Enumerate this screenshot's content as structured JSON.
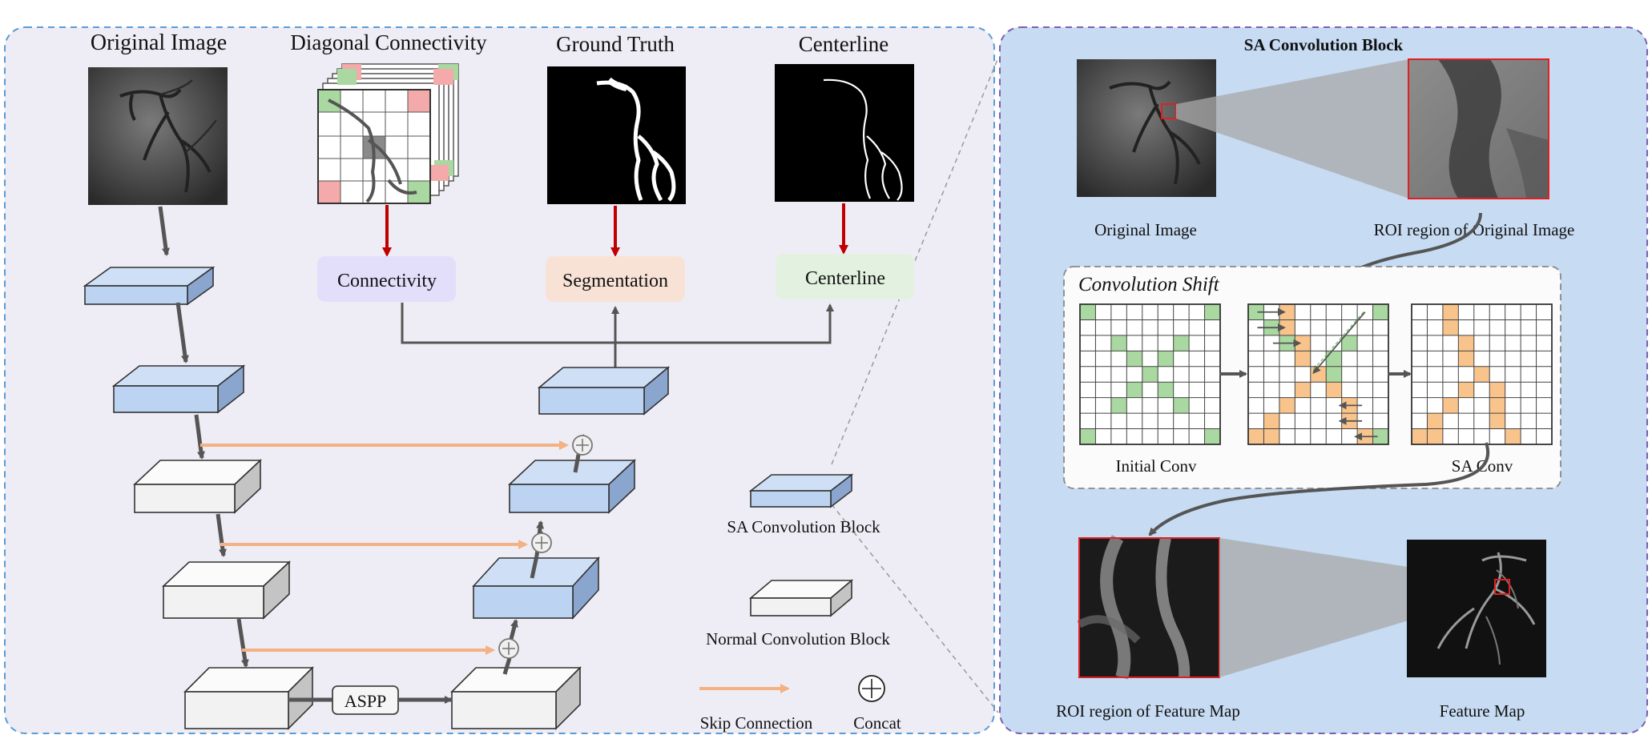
{
  "left_panel": {
    "col_titles": {
      "original": "Original Image",
      "diagonal": "Diagonal Connectivity",
      "ground_truth": "Ground Truth",
      "centerline": "Centerline"
    },
    "outputs": {
      "connectivity": "Connectivity",
      "segmentation": "Segmentation",
      "centerline": "Centerline"
    },
    "aspp_label": "ASPP",
    "legend": {
      "sa_block": "SA Convolution Block",
      "normal_block": "Normal Convolution Block",
      "skip": "Skip Connection",
      "concat": "Concat"
    }
  },
  "right_panel": {
    "title": "SA Convolution Block",
    "original_image": "Original Image",
    "roi_original": "ROI region of Original Image",
    "shift_title": "Convolution Shift",
    "initial_conv": "Initial Conv",
    "sa_conv": "SA Conv",
    "roi_feature": "ROI region of  Feature Map",
    "feature_map": "Feature Map"
  },
  "colors": {
    "left_bg": "#eeedf5",
    "right_bg": "#c7dbf3",
    "sa_block": "#bcd4f2",
    "normal_block": "#f2f2f2",
    "skip": "#f4b183",
    "red_arrow": "#c00000",
    "green_cell": "#a9d8a0",
    "orange_cell": "#f8c48c",
    "pink_cell": "#f4a9aa"
  }
}
